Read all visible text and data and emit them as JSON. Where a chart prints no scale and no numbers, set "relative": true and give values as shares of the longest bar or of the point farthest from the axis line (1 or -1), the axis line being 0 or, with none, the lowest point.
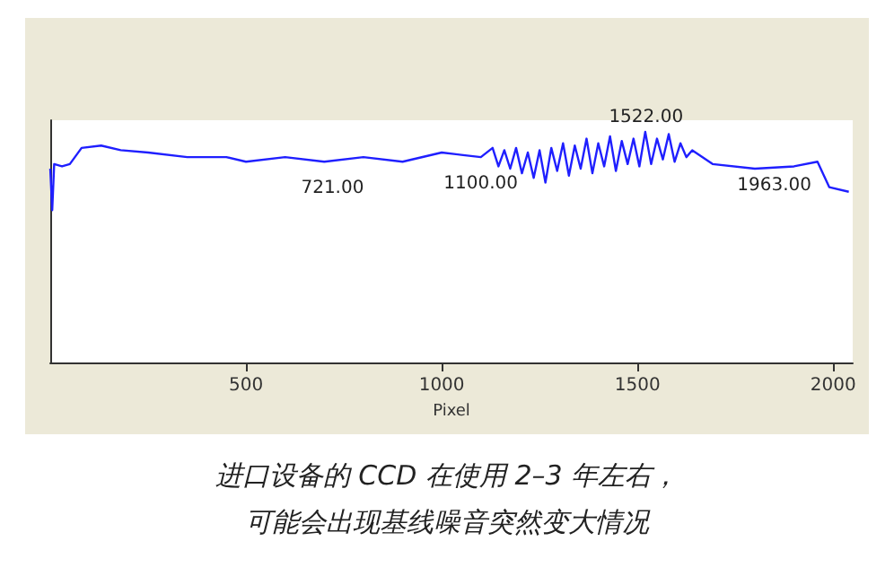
{
  "chart_data": {
    "type": "line",
    "xlabel": "Pixel",
    "relative": true,
    "tick_labels": "x",
    "xlim": [
      0,
      2050
    ],
    "xticks": [
      500,
      1000,
      1500,
      2000
    ],
    "grid": false,
    "marker": "none",
    "line_style": "solid",
    "series": [
      {
        "color": "#1f1fff",
        "x": [
          0,
          5,
          10,
          30,
          50,
          80,
          130,
          180,
          250,
          350,
          450,
          500,
          600,
          700,
          800,
          900,
          1000,
          1050,
          1100,
          1130,
          1145,
          1160,
          1175,
          1190,
          1205,
          1220,
          1235,
          1250,
          1265,
          1280,
          1295,
          1310,
          1325,
          1340,
          1355,
          1370,
          1385,
          1400,
          1415,
          1430,
          1445,
          1460,
          1475,
          1490,
          1505,
          1520,
          1535,
          1550,
          1565,
          1580,
          1595,
          1610,
          1625,
          1640,
          1692,
          1800,
          1900,
          1960,
          1990,
          2040
        ],
        "values": [
          0.84,
          0.66,
          0.86,
          0.85,
          0.86,
          0.93,
          0.94,
          0.92,
          0.91,
          0.89,
          0.89,
          0.87,
          0.89,
          0.87,
          0.89,
          0.87,
          0.91,
          0.9,
          0.89,
          0.93,
          0.85,
          0.92,
          0.84,
          0.93,
          0.82,
          0.91,
          0.8,
          0.92,
          0.78,
          0.93,
          0.83,
          0.95,
          0.81,
          0.94,
          0.84,
          0.97,
          0.82,
          0.95,
          0.85,
          0.98,
          0.83,
          0.96,
          0.86,
          0.97,
          0.85,
          1.0,
          0.86,
          0.97,
          0.88,
          0.99,
          0.87,
          0.95,
          0.89,
          0.92,
          0.86,
          0.84,
          0.85,
          0.87,
          0.76,
          0.74
        ]
      }
    ],
    "annotations": [
      {
        "text": "721.00",
        "x": 721,
        "y": 0.87
      },
      {
        "text": "1100.00",
        "x": 1100,
        "y": 0.89
      },
      {
        "text": "1522.00",
        "x": 1522,
        "y": 0.99
      },
      {
        "text": "1963.00",
        "x": 1963,
        "y": 0.86
      },
      "进口设备的 CCD 在使用 2–3 年左右，",
      "可能会出现基线噪音突然变大情况"
    ]
  }
}
